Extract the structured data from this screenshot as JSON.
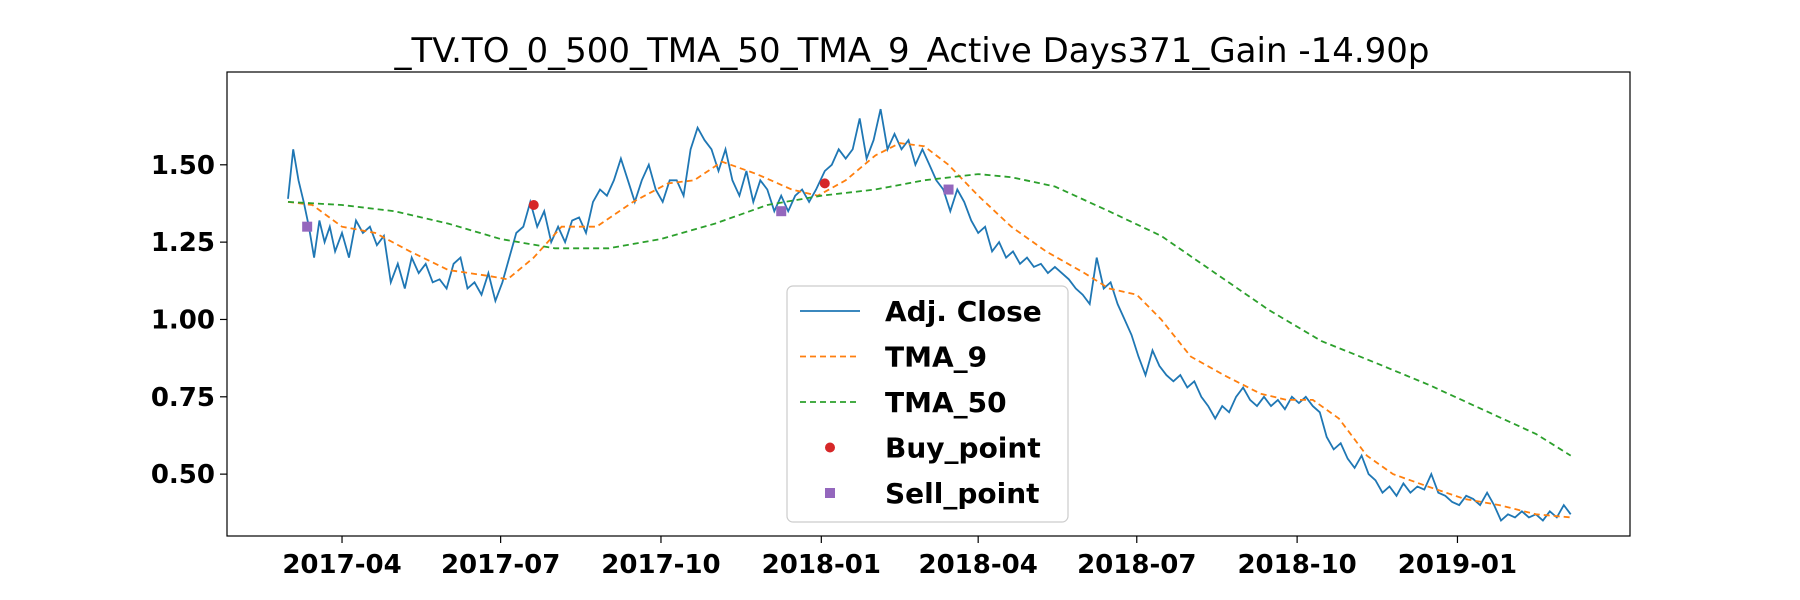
{
  "chart_data": {
    "type": "line",
    "title": "_TV.TO_0_500_TMA_50_TMA_9_Active Days371_Gain -14.90p",
    "xlabel": "",
    "ylabel": "",
    "xlim": [
      "2017-01-25",
      "2019-04-10"
    ],
    "ylim": [
      0.3,
      1.8
    ],
    "grid": false,
    "legend_position": "lower-center",
    "x_ticks": [
      "2017-04",
      "2017-07",
      "2017-10",
      "2018-01",
      "2018-04",
      "2018-07",
      "2018-10",
      "2019-01"
    ],
    "y_ticks": [
      "0.50",
      "0.75",
      "1.00",
      "1.25",
      "1.50"
    ],
    "series": [
      {
        "name": "Adj. Close",
        "style": "solid",
        "color": "#1f77b4",
        "points": [
          [
            "2017-03-01",
            1.39
          ],
          [
            "2017-03-04",
            1.55
          ],
          [
            "2017-03-07",
            1.45
          ],
          [
            "2017-03-10",
            1.38
          ],
          [
            "2017-03-13",
            1.3
          ],
          [
            "2017-03-16",
            1.2
          ],
          [
            "2017-03-19",
            1.32
          ],
          [
            "2017-03-22",
            1.25
          ],
          [
            "2017-03-25",
            1.3
          ],
          [
            "2017-03-28",
            1.22
          ],
          [
            "2017-04-01",
            1.28
          ],
          [
            "2017-04-05",
            1.2
          ],
          [
            "2017-04-09",
            1.32
          ],
          [
            "2017-04-13",
            1.28
          ],
          [
            "2017-04-17",
            1.3
          ],
          [
            "2017-04-21",
            1.24
          ],
          [
            "2017-04-25",
            1.27
          ],
          [
            "2017-04-29",
            1.12
          ],
          [
            "2017-05-03",
            1.18
          ],
          [
            "2017-05-07",
            1.1
          ],
          [
            "2017-05-11",
            1.2
          ],
          [
            "2017-05-15",
            1.15
          ],
          [
            "2017-05-19",
            1.18
          ],
          [
            "2017-05-23",
            1.12
          ],
          [
            "2017-05-27",
            1.13
          ],
          [
            "2017-05-31",
            1.1
          ],
          [
            "2017-06-04",
            1.18
          ],
          [
            "2017-06-08",
            1.2
          ],
          [
            "2017-06-12",
            1.1
          ],
          [
            "2017-06-16",
            1.12
          ],
          [
            "2017-06-20",
            1.08
          ],
          [
            "2017-06-24",
            1.15
          ],
          [
            "2017-06-28",
            1.06
          ],
          [
            "2017-07-02",
            1.12
          ],
          [
            "2017-07-06",
            1.2
          ],
          [
            "2017-07-10",
            1.28
          ],
          [
            "2017-07-14",
            1.3
          ],
          [
            "2017-07-18",
            1.38
          ],
          [
            "2017-07-22",
            1.3
          ],
          [
            "2017-07-26",
            1.35
          ],
          [
            "2017-07-30",
            1.25
          ],
          [
            "2017-08-03",
            1.3
          ],
          [
            "2017-08-07",
            1.25
          ],
          [
            "2017-08-11",
            1.32
          ],
          [
            "2017-08-15",
            1.33
          ],
          [
            "2017-08-19",
            1.28
          ],
          [
            "2017-08-23",
            1.38
          ],
          [
            "2017-08-27",
            1.42
          ],
          [
            "2017-08-31",
            1.4
          ],
          [
            "2017-09-04",
            1.45
          ],
          [
            "2017-09-08",
            1.52
          ],
          [
            "2017-09-12",
            1.45
          ],
          [
            "2017-09-16",
            1.38
          ],
          [
            "2017-09-20",
            1.45
          ],
          [
            "2017-09-24",
            1.5
          ],
          [
            "2017-09-28",
            1.42
          ],
          [
            "2017-10-02",
            1.38
          ],
          [
            "2017-10-06",
            1.45
          ],
          [
            "2017-10-10",
            1.45
          ],
          [
            "2017-10-14",
            1.4
          ],
          [
            "2017-10-18",
            1.55
          ],
          [
            "2017-10-22",
            1.62
          ],
          [
            "2017-10-26",
            1.58
          ],
          [
            "2017-10-30",
            1.55
          ],
          [
            "2017-11-03",
            1.48
          ],
          [
            "2017-11-07",
            1.55
          ],
          [
            "2017-11-11",
            1.45
          ],
          [
            "2017-11-15",
            1.4
          ],
          [
            "2017-11-19",
            1.48
          ],
          [
            "2017-11-23",
            1.38
          ],
          [
            "2017-11-27",
            1.45
          ],
          [
            "2017-12-01",
            1.42
          ],
          [
            "2017-12-05",
            1.35
          ],
          [
            "2017-12-09",
            1.4
          ],
          [
            "2017-12-13",
            1.35
          ],
          [
            "2017-12-17",
            1.4
          ],
          [
            "2017-12-21",
            1.42
          ],
          [
            "2017-12-25",
            1.38
          ],
          [
            "2017-12-29",
            1.42
          ],
          [
            "2018-01-03",
            1.48
          ],
          [
            "2018-01-07",
            1.5
          ],
          [
            "2018-01-11",
            1.55
          ],
          [
            "2018-01-15",
            1.52
          ],
          [
            "2018-01-19",
            1.55
          ],
          [
            "2018-01-23",
            1.65
          ],
          [
            "2018-01-27",
            1.52
          ],
          [
            "2018-01-31",
            1.58
          ],
          [
            "2018-02-04",
            1.68
          ],
          [
            "2018-02-08",
            1.55
          ],
          [
            "2018-02-12",
            1.6
          ],
          [
            "2018-02-16",
            1.55
          ],
          [
            "2018-02-20",
            1.58
          ],
          [
            "2018-02-24",
            1.5
          ],
          [
            "2018-02-28",
            1.55
          ],
          [
            "2018-03-04",
            1.5
          ],
          [
            "2018-03-08",
            1.45
          ],
          [
            "2018-03-12",
            1.42
          ],
          [
            "2018-03-16",
            1.35
          ],
          [
            "2018-03-20",
            1.42
          ],
          [
            "2018-03-24",
            1.38
          ],
          [
            "2018-03-28",
            1.32
          ],
          [
            "2018-04-01",
            1.28
          ],
          [
            "2018-04-05",
            1.3
          ],
          [
            "2018-04-09",
            1.22
          ],
          [
            "2018-04-13",
            1.25
          ],
          [
            "2018-04-17",
            1.2
          ],
          [
            "2018-04-21",
            1.22
          ],
          [
            "2018-04-25",
            1.18
          ],
          [
            "2018-04-29",
            1.2
          ],
          [
            "2018-05-03",
            1.17
          ],
          [
            "2018-05-07",
            1.18
          ],
          [
            "2018-05-11",
            1.15
          ],
          [
            "2018-05-15",
            1.17
          ],
          [
            "2018-05-19",
            1.15
          ],
          [
            "2018-05-23",
            1.13
          ],
          [
            "2018-05-27",
            1.1
          ],
          [
            "2018-05-31",
            1.08
          ],
          [
            "2018-06-04",
            1.05
          ],
          [
            "2018-06-08",
            1.2
          ],
          [
            "2018-06-12",
            1.1
          ],
          [
            "2018-06-16",
            1.12
          ],
          [
            "2018-06-20",
            1.05
          ],
          [
            "2018-06-24",
            1.0
          ],
          [
            "2018-06-28",
            0.95
          ],
          [
            "2018-07-02",
            0.88
          ],
          [
            "2018-07-06",
            0.82
          ],
          [
            "2018-07-10",
            0.9
          ],
          [
            "2018-07-14",
            0.85
          ],
          [
            "2018-07-18",
            0.82
          ],
          [
            "2018-07-22",
            0.8
          ],
          [
            "2018-07-26",
            0.82
          ],
          [
            "2018-07-30",
            0.78
          ],
          [
            "2018-08-03",
            0.8
          ],
          [
            "2018-08-07",
            0.75
          ],
          [
            "2018-08-11",
            0.72
          ],
          [
            "2018-08-15",
            0.68
          ],
          [
            "2018-08-19",
            0.72
          ],
          [
            "2018-08-23",
            0.7
          ],
          [
            "2018-08-27",
            0.75
          ],
          [
            "2018-08-31",
            0.78
          ],
          [
            "2018-09-04",
            0.74
          ],
          [
            "2018-09-08",
            0.72
          ],
          [
            "2018-09-12",
            0.75
          ],
          [
            "2018-09-16",
            0.72
          ],
          [
            "2018-09-20",
            0.74
          ],
          [
            "2018-09-24",
            0.71
          ],
          [
            "2018-09-28",
            0.75
          ],
          [
            "2018-10-02",
            0.73
          ],
          [
            "2018-10-06",
            0.75
          ],
          [
            "2018-10-10",
            0.72
          ],
          [
            "2018-10-14",
            0.7
          ],
          [
            "2018-10-18",
            0.62
          ],
          [
            "2018-10-22",
            0.58
          ],
          [
            "2018-10-26",
            0.6
          ],
          [
            "2018-10-30",
            0.55
          ],
          [
            "2018-11-03",
            0.52
          ],
          [
            "2018-11-07",
            0.56
          ],
          [
            "2018-11-11",
            0.5
          ],
          [
            "2018-11-15",
            0.48
          ],
          [
            "2018-11-19",
            0.44
          ],
          [
            "2018-11-23",
            0.46
          ],
          [
            "2018-11-27",
            0.43
          ],
          [
            "2018-12-01",
            0.47
          ],
          [
            "2018-12-05",
            0.44
          ],
          [
            "2018-12-09",
            0.46
          ],
          [
            "2018-12-13",
            0.45
          ],
          [
            "2018-12-17",
            0.5
          ],
          [
            "2018-12-21",
            0.44
          ],
          [
            "2018-12-25",
            0.43
          ],
          [
            "2018-12-29",
            0.41
          ],
          [
            "2019-01-02",
            0.4
          ],
          [
            "2019-01-06",
            0.43
          ],
          [
            "2019-01-10",
            0.42
          ],
          [
            "2019-01-14",
            0.4
          ],
          [
            "2019-01-18",
            0.44
          ],
          [
            "2019-01-22",
            0.4
          ],
          [
            "2019-01-26",
            0.35
          ],
          [
            "2019-01-30",
            0.37
          ],
          [
            "2019-02-03",
            0.36
          ],
          [
            "2019-02-07",
            0.38
          ],
          [
            "2019-02-11",
            0.36
          ],
          [
            "2019-02-15",
            0.37
          ],
          [
            "2019-02-19",
            0.35
          ],
          [
            "2019-02-23",
            0.38
          ],
          [
            "2019-02-27",
            0.36
          ],
          [
            "2019-03-03",
            0.4
          ],
          [
            "2019-03-07",
            0.37
          ]
        ]
      },
      {
        "name": "TMA_9",
        "style": "dashed",
        "color": "#ff7f0e",
        "points": [
          [
            "2017-03-01",
            1.38
          ],
          [
            "2017-03-15",
            1.37
          ],
          [
            "2017-04-01",
            1.3
          ],
          [
            "2017-04-20",
            1.28
          ],
          [
            "2017-05-10",
            1.22
          ],
          [
            "2017-06-01",
            1.16
          ],
          [
            "2017-06-25",
            1.14
          ],
          [
            "2017-07-05",
            1.13
          ],
          [
            "2017-07-20",
            1.2
          ],
          [
            "2017-08-05",
            1.3
          ],
          [
            "2017-08-25",
            1.3
          ],
          [
            "2017-09-15",
            1.38
          ],
          [
            "2017-10-05",
            1.44
          ],
          [
            "2017-10-20",
            1.45
          ],
          [
            "2017-11-05",
            1.51
          ],
          [
            "2017-11-25",
            1.47
          ],
          [
            "2017-12-15",
            1.42
          ],
          [
            "2017-12-30",
            1.4
          ],
          [
            "2018-01-15",
            1.45
          ],
          [
            "2018-02-01",
            1.53
          ],
          [
            "2018-02-15",
            1.57
          ],
          [
            "2018-03-01",
            1.56
          ],
          [
            "2018-03-15",
            1.5
          ],
          [
            "2018-04-01",
            1.4
          ],
          [
            "2018-04-20",
            1.3
          ],
          [
            "2018-05-10",
            1.22
          ],
          [
            "2018-06-01",
            1.15
          ],
          [
            "2018-06-15",
            1.1
          ],
          [
            "2018-07-01",
            1.08
          ],
          [
            "2018-07-15",
            1.0
          ],
          [
            "2018-08-01",
            0.88
          ],
          [
            "2018-08-20",
            0.82
          ],
          [
            "2018-09-10",
            0.76
          ],
          [
            "2018-09-25",
            0.74
          ],
          [
            "2018-10-10",
            0.74
          ],
          [
            "2018-10-25",
            0.68
          ],
          [
            "2018-11-10",
            0.56
          ],
          [
            "2018-11-25",
            0.5
          ],
          [
            "2018-12-15",
            0.46
          ],
          [
            "2019-01-05",
            0.42
          ],
          [
            "2019-01-25",
            0.4
          ],
          [
            "2019-02-15",
            0.37
          ],
          [
            "2019-03-07",
            0.36
          ]
        ]
      },
      {
        "name": "TMA_50",
        "style": "dashed",
        "color": "#2ca02c",
        "points": [
          [
            "2017-03-01",
            1.38
          ],
          [
            "2017-04-01",
            1.37
          ],
          [
            "2017-05-01",
            1.35
          ],
          [
            "2017-06-01",
            1.31
          ],
          [
            "2017-07-01",
            1.26
          ],
          [
            "2017-08-01",
            1.23
          ],
          [
            "2017-09-01",
            1.23
          ],
          [
            "2017-10-01",
            1.26
          ],
          [
            "2017-11-01",
            1.31
          ],
          [
            "2017-12-01",
            1.37
          ],
          [
            "2018-01-01",
            1.4
          ],
          [
            "2018-02-01",
            1.42
          ],
          [
            "2018-03-01",
            1.45
          ],
          [
            "2018-04-01",
            1.47
          ],
          [
            "2018-04-20",
            1.46
          ],
          [
            "2018-05-15",
            1.43
          ],
          [
            "2018-06-15",
            1.35
          ],
          [
            "2018-07-15",
            1.27
          ],
          [
            "2018-08-15",
            1.15
          ],
          [
            "2018-09-15",
            1.03
          ],
          [
            "2018-10-15",
            0.93
          ],
          [
            "2018-11-15",
            0.86
          ],
          [
            "2018-12-15",
            0.79
          ],
          [
            "2019-01-15",
            0.71
          ],
          [
            "2019-02-15",
            0.63
          ],
          [
            "2019-03-07",
            0.56
          ]
        ]
      },
      {
        "name": "Buy_point",
        "style": "marker-circle",
        "color": "#d62728",
        "points": [
          [
            "2017-07-20",
            1.37
          ],
          [
            "2018-01-03",
            1.44
          ]
        ]
      },
      {
        "name": "Sell_point",
        "style": "marker-square",
        "color": "#9467bd",
        "points": [
          [
            "2017-03-12",
            1.3
          ],
          [
            "2017-12-09",
            1.35
          ],
          [
            "2018-03-15",
            1.42
          ]
        ]
      }
    ]
  }
}
